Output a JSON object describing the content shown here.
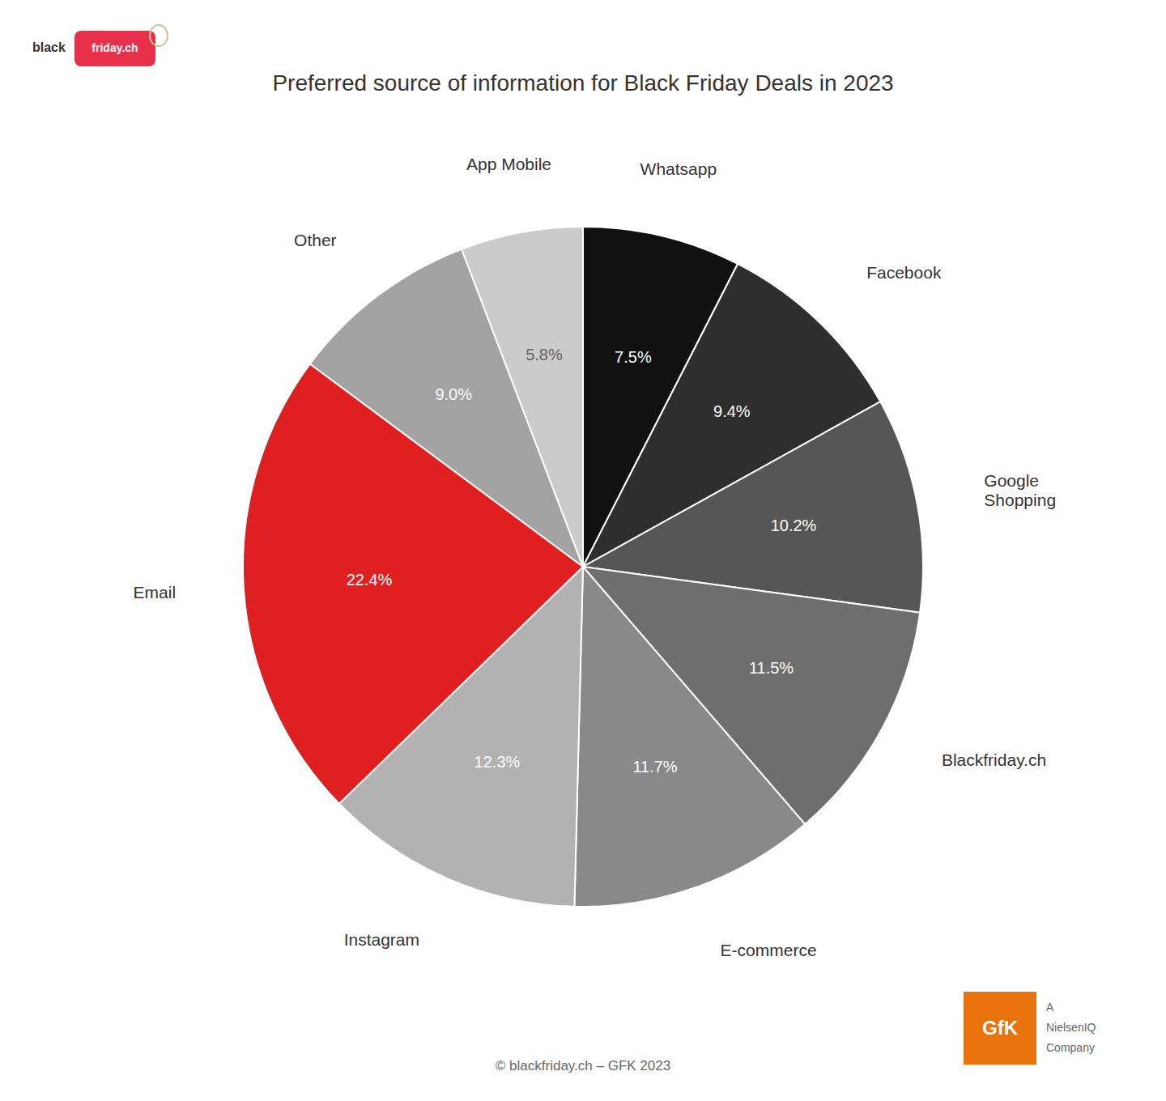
{
  "chart_data": {
    "type": "pie",
    "title": "Preferred source of information for Black Friday Deals in 2023",
    "categories": [
      "Whatsapp",
      "Facebook",
      "Google\nShopping",
      "Blackfriday.ch",
      "E-commerce",
      "Instagram",
      "Email",
      "Other",
      "App Mobile"
    ],
    "values": [
      7.5,
      9.4,
      10.2,
      11.5,
      11.7,
      12.3,
      22.4,
      9.0,
      5.8
    ],
    "value_labels": [
      "7.5%",
      "9.4%",
      "10.2%",
      "11.5%",
      "11.7%",
      "12.3%",
      "22.4%",
      "9.0%",
      "5.8%"
    ],
    "colors": [
      "#111111",
      "#2e2e2e",
      "#565656",
      "#6e6e6e",
      "#898989",
      "#b2b2b2",
      "#e02020",
      "#a3a3a3",
      "#cbcbcb"
    ],
    "data_labels": true,
    "annotations": [
      "© blackfriday.ch – GFK 2023",
      "black",
      "friday.ch",
      "GfK",
      "A",
      "NielsenIQ",
      "Company"
    ]
  }
}
